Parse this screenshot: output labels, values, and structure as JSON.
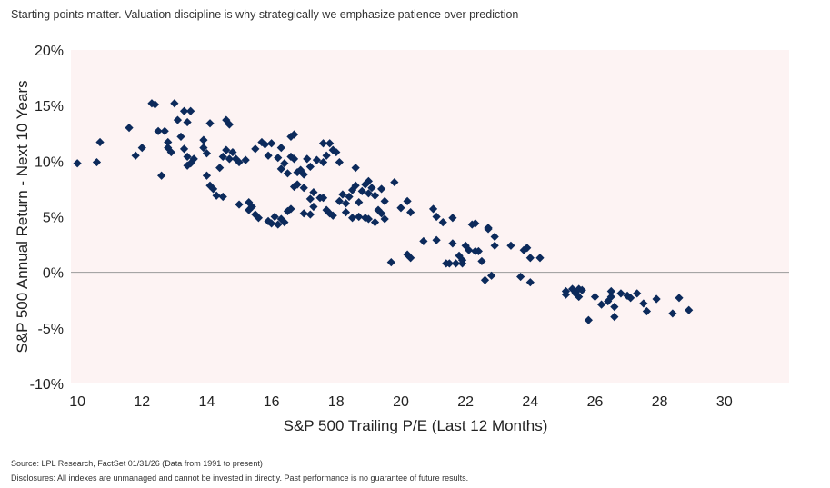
{
  "header": {
    "title": "Starting points matter. Valuation discipline is why strategically we emphasize patience over prediction"
  },
  "footer": {
    "source": "Source: LPL Research, FactSet 01/31/26 (Data from 1991 to present)",
    "disclosures": "Disclosures: All indexes are unmanaged and cannot be invested in directly. Past performance is no guarantee of future results."
  },
  "colors": {
    "plot_bg": "#fdf3f3",
    "marker": "#0c2a5b",
    "zero_line": "#9a9a9a"
  },
  "chart_data": {
    "type": "scatter",
    "xlabel": "S&P 500 Trailing P/E (Last 12 Months)",
    "ylabel": "S&P 500 Annual Return - Next 10 Years",
    "xlim": [
      9.8,
      32
    ],
    "ylim": [
      -10,
      20
    ],
    "xticks": [
      10,
      12,
      14,
      16,
      18,
      20,
      22,
      24,
      26,
      28,
      30
    ],
    "xtick_labels": [
      "10",
      "12",
      "14",
      "16",
      "18",
      "20",
      "22",
      "24",
      "26",
      "28",
      "30"
    ],
    "yticks": [
      20,
      15,
      10,
      5,
      0,
      -5,
      -10
    ],
    "ytick_labels": [
      "20%",
      "15%",
      "10%",
      "5%",
      "0%",
      "-5%",
      "-10%"
    ],
    "marker": "diamond",
    "points": [
      [
        10,
        9.8
      ],
      [
        10.6,
        9.9
      ],
      [
        10.7,
        11.7
      ],
      [
        11.6,
        13
      ],
      [
        11.8,
        10.5
      ],
      [
        12,
        11.2
      ],
      [
        12.3,
        15.2
      ],
      [
        12.4,
        15.1
      ],
      [
        12.5,
        12.7
      ],
      [
        12.7,
        12.7
      ],
      [
        12.6,
        8.7
      ],
      [
        12.8,
        11.2
      ],
      [
        12.8,
        11.7
      ],
      [
        12.9,
        10.8
      ],
      [
        13,
        15.2
      ],
      [
        13.1,
        13.7
      ],
      [
        13.2,
        12.2
      ],
      [
        13.3,
        14.5
      ],
      [
        13.4,
        13.5
      ],
      [
        13.5,
        14.5
      ],
      [
        13.3,
        11.1
      ],
      [
        13.4,
        10.4
      ],
      [
        13.5,
        9.8
      ],
      [
        13.6,
        10.2
      ],
      [
        13.4,
        9.6
      ],
      [
        13.9,
        11.2
      ],
      [
        13.9,
        11.9
      ],
      [
        14,
        10.7
      ],
      [
        14,
        8.7
      ],
      [
        14.1,
        7.8
      ],
      [
        14.2,
        7.5
      ],
      [
        14.1,
        13.4
      ],
      [
        14.3,
        6.9
      ],
      [
        14.5,
        6.8
      ],
      [
        14.4,
        9.4
      ],
      [
        14.6,
        13.7
      ],
      [
        14.7,
        13.3
      ],
      [
        14.6,
        11
      ],
      [
        14.7,
        10.2
      ],
      [
        14.8,
        10.8
      ],
      [
        14.5,
        10.4
      ],
      [
        14.9,
        10.2
      ],
      [
        15,
        9.9
      ],
      [
        15.2,
        10.1
      ],
      [
        15,
        6.1
      ],
      [
        15.3,
        5.6
      ],
      [
        15.4,
        5.9
      ],
      [
        15.3,
        6.3
      ],
      [
        15.5,
        5.2
      ],
      [
        15.6,
        4.9
      ],
      [
        15.5,
        11.1
      ],
      [
        15.7,
        11.7
      ],
      [
        15.8,
        11.5
      ],
      [
        15.9,
        10.5
      ],
      [
        16,
        11.6
      ],
      [
        15.9,
        4.6
      ],
      [
        16,
        4.4
      ],
      [
        16.1,
        5
      ],
      [
        16.2,
        4.3
      ],
      [
        16.3,
        4.8
      ],
      [
        16.4,
        4.5
      ],
      [
        16.2,
        10.3
      ],
      [
        16.3,
        9.3
      ],
      [
        16.3,
        11.2
      ],
      [
        16.4,
        9.8
      ],
      [
        16.5,
        8.9
      ],
      [
        16.6,
        12.2
      ],
      [
        16.7,
        12.4
      ],
      [
        16.6,
        10.4
      ],
      [
        16.7,
        10.2
      ],
      [
        16.8,
        9
      ],
      [
        16.9,
        9.2
      ],
      [
        16.7,
        7.7
      ],
      [
        16.8,
        7.9
      ],
      [
        16.5,
        5.5
      ],
      [
        16.6,
        5.7
      ],
      [
        17,
        8.8
      ],
      [
        17,
        7.6
      ],
      [
        17.1,
        10.2
      ],
      [
        17.2,
        9.5
      ],
      [
        17.2,
        6.6
      ],
      [
        17.3,
        5.9
      ],
      [
        17.3,
        7.2
      ],
      [
        17.5,
        6.7
      ],
      [
        17.6,
        6.7
      ],
      [
        17,
        5.3
      ],
      [
        17.2,
        5.2
      ],
      [
        17.4,
        10.1
      ],
      [
        17.6,
        9.9
      ],
      [
        17.6,
        11.6
      ],
      [
        17.7,
        10.5
      ],
      [
        17.8,
        11.6
      ],
      [
        17.9,
        11
      ],
      [
        18,
        10.8
      ],
      [
        18.1,
        9.9
      ],
      [
        17.7,
        5.6
      ],
      [
        17.8,
        5.3
      ],
      [
        17.9,
        5.1
      ],
      [
        18.1,
        6.4
      ],
      [
        18.2,
        7
      ],
      [
        18.3,
        6.2
      ],
      [
        18.4,
        6.8
      ],
      [
        18.5,
        7.4
      ],
      [
        18.6,
        9.4
      ],
      [
        18.6,
        7.8
      ],
      [
        18.7,
        6.3
      ],
      [
        18.8,
        7.3
      ],
      [
        18.9,
        7.9
      ],
      [
        19,
        7.1
      ],
      [
        19,
        8.2
      ],
      [
        19.1,
        7.6
      ],
      [
        18.3,
        5.4
      ],
      [
        18.5,
        4.9
      ],
      [
        18.7,
        5
      ],
      [
        18.9,
        4.9
      ],
      [
        19,
        4.8
      ],
      [
        19.2,
        4.5
      ],
      [
        19.2,
        6.9
      ],
      [
        19.4,
        7.5
      ],
      [
        19.5,
        6.4
      ],
      [
        19.8,
        8.1
      ],
      [
        19.4,
        5.3
      ],
      [
        19.5,
        4.8
      ],
      [
        19.3,
        5.6
      ],
      [
        19.7,
        0.9
      ],
      [
        20,
        5.8
      ],
      [
        20.2,
        6.4
      ],
      [
        20.3,
        5.4
      ],
      [
        20.2,
        1.6
      ],
      [
        20.3,
        1.3
      ],
      [
        20.7,
        2.8
      ],
      [
        21,
        5.7
      ],
      [
        21.1,
        5
      ],
      [
        21.3,
        4.5
      ],
      [
        21.1,
        2.9
      ],
      [
        21.4,
        0.8
      ],
      [
        21.5,
        0.8
      ],
      [
        21.6,
        4.9
      ],
      [
        21.6,
        2.6
      ],
      [
        21.7,
        0.8
      ],
      [
        21.8,
        1.5
      ],
      [
        21.9,
        0.8
      ],
      [
        21.9,
        1.1
      ],
      [
        22.1,
        2
      ],
      [
        22,
        2.4
      ],
      [
        22.2,
        4.3
      ],
      [
        22.3,
        4.4
      ],
      [
        22.3,
        1.9
      ],
      [
        22.4,
        1.9
      ],
      [
        22.5,
        1
      ],
      [
        22.6,
        -0.7
      ],
      [
        22.7,
        4
      ],
      [
        22.7,
        3.9
      ],
      [
        22.9,
        2.4
      ],
      [
        22.9,
        3.2
      ],
      [
        22.8,
        -0.3
      ],
      [
        23.4,
        2.4
      ],
      [
        23.7,
        -0.4
      ],
      [
        23.8,
        2
      ],
      [
        23.9,
        2.2
      ],
      [
        24,
        1.3
      ],
      [
        24,
        -0.9
      ],
      [
        24.3,
        1.3
      ],
      [
        25.1,
        -1.7
      ],
      [
        25.1,
        -2
      ],
      [
        25.3,
        -1.5
      ],
      [
        25.4,
        -1.9
      ],
      [
        25.5,
        -1.5
      ],
      [
        25.5,
        -2.2
      ],
      [
        25.6,
        -1.6
      ],
      [
        25.8,
        -4.3
      ],
      [
        26,
        -2.2
      ],
      [
        26.2,
        -2.9
      ],
      [
        26.4,
        -2.6
      ],
      [
        26.5,
        -1.7
      ],
      [
        26.5,
        -2.2
      ],
      [
        26.6,
        -3.1
      ],
      [
        26.6,
        -4
      ],
      [
        26.8,
        -1.9
      ],
      [
        27,
        -2.1
      ],
      [
        27.1,
        -2.3
      ],
      [
        27.3,
        -1.9
      ],
      [
        27.5,
        -2.8
      ],
      [
        27.6,
        -3.5
      ],
      [
        27.9,
        -2.4
      ],
      [
        28.4,
        -3.7
      ],
      [
        28.6,
        -2.3
      ],
      [
        28.9,
        -3.4
      ]
    ],
    "grid": false,
    "legend": "none"
  }
}
